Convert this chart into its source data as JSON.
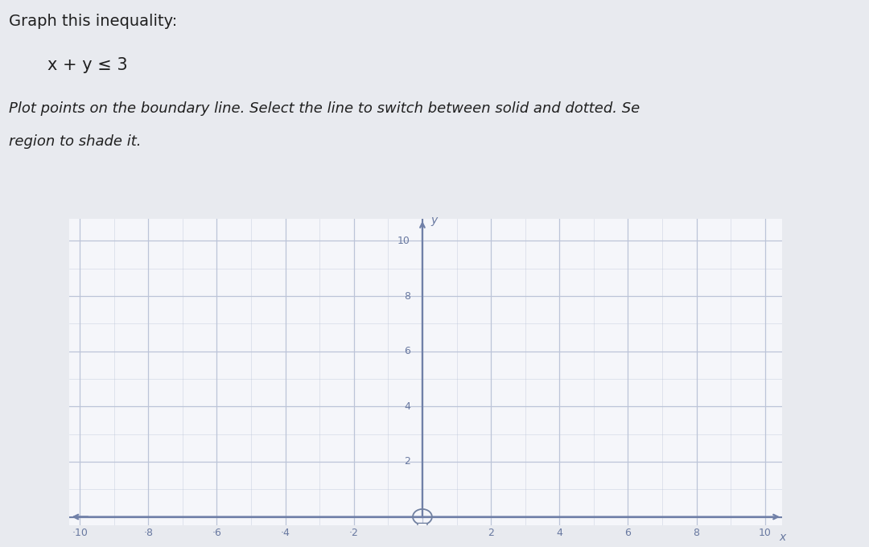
{
  "title_line1": "Graph this inequality:",
  "inequality": "x + y ≤ 3",
  "instruction_line1": "Plot points on the boundary line. Select the line to switch between solid and dotted. Se",
  "instruction_line2": "region to shade it.",
  "xlim": [
    -10,
    10
  ],
  "ylim": [
    0,
    10
  ],
  "x_ticks": [
    -10,
    -8,
    -6,
    -4,
    -2,
    2,
    4,
    6,
    8,
    10
  ],
  "x_tick_labels": [
    "·10",
    "·8",
    "·6",
    "·4",
    "·2",
    "2",
    "4",
    "6",
    "8",
    "10"
  ],
  "y_ticks": [
    2,
    4,
    6,
    8,
    10
  ],
  "y_tick_labels": [
    "2",
    "4",
    "6",
    "8",
    "10"
  ],
  "grid_color": "#bcc4d8",
  "axis_color": "#7080a8",
  "bg_color_left": "#f0f2f8",
  "bg_color": "#f5f6fa",
  "text_color": "#202020",
  "figure_bg": "#e8eaef",
  "title_fontsize": 14,
  "instruction_fontsize": 13,
  "tick_fontsize": 9,
  "label_color": "#6878a0"
}
